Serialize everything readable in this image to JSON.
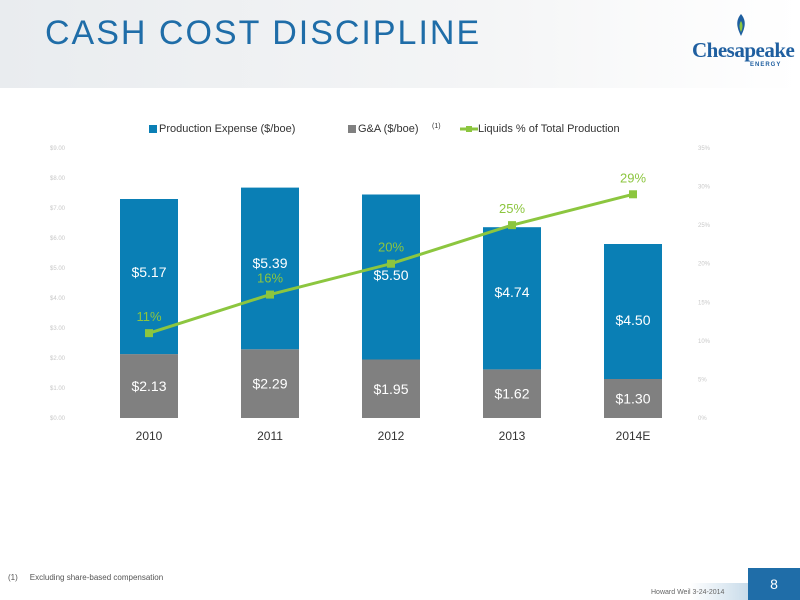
{
  "slide": {
    "title": "CASH COST DISCIPLINE",
    "logo_text": "Chesapeake",
    "logo_sub": "ENERGY",
    "footnote_marker": "(1)",
    "footnote_text": "Excluding share-based compensation",
    "event": "Howard Weil 3-24-2014",
    "page_number": "8"
  },
  "colors": {
    "title": "#1f6da8",
    "production_bar": "#0a7fb5",
    "ga_bar": "#808080",
    "liquids_line": "#8cc63f",
    "brand_blue": "#1f6da8"
  },
  "chart_data": {
    "type": "bar",
    "categories": [
      "2010",
      "2011",
      "2012",
      "2013",
      "2014E"
    ],
    "series": [
      {
        "name": "G&A ($/boe)",
        "values": [
          2.13,
          2.29,
          1.95,
          1.62,
          1.3
        ],
        "labels": [
          "$2.13",
          "$2.29",
          "$1.95",
          "$1.62",
          "$1.30"
        ]
      },
      {
        "name": "Production Expense ($/boe)",
        "values": [
          5.17,
          5.39,
          5.5,
          4.74,
          4.5
        ],
        "labels": [
          "$5.17",
          "$5.39",
          "$5.50",
          "$4.74",
          "$4.50"
        ]
      },
      {
        "name": "Liquids % of Total Production",
        "type": "line",
        "values": [
          11,
          16,
          20,
          25,
          29
        ],
        "labels": [
          "11%",
          "16%",
          "20%",
          "25%",
          "29%"
        ]
      }
    ],
    "legend": {
      "position": "top",
      "items": [
        "Production Expense ($/boe)",
        "G&A ($/boe)",
        "Liquids % of Total Production"
      ],
      "ga_superscript": "(1)"
    },
    "y_left": {
      "range": [
        0,
        9
      ],
      "ticks": [
        "$0.00",
        "$1.00",
        "$2.00",
        "$3.00",
        "$4.00",
        "$5.00",
        "$6.00",
        "$7.00",
        "$8.00",
        "$9.00"
      ]
    },
    "y_right": {
      "range": [
        0,
        35
      ],
      "ticks": [
        "0%",
        "5%",
        "10%",
        "15%",
        "20%",
        "25%",
        "30%",
        "35%"
      ]
    },
    "stacked": true,
    "grid": false
  }
}
